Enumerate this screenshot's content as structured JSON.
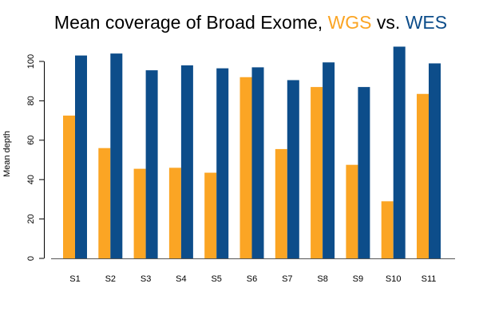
{
  "chart_data": {
    "type": "bar",
    "title": {
      "prefix": "Mean coverage of Broad Exome, ",
      "series1": "WGS",
      "middle": " vs. ",
      "series2": "WES"
    },
    "xlabel": "",
    "ylabel": "Mean depth",
    "ylim": [
      0,
      110
    ],
    "yticks": [
      0,
      20,
      40,
      60,
      80,
      100
    ],
    "categories": [
      "S1",
      "S2",
      "S3",
      "S4",
      "S5",
      "S6",
      "S7",
      "S8",
      "S9",
      "S10",
      "S11"
    ],
    "series": [
      {
        "name": "WGS",
        "color": "#FBA524",
        "values": [
          72.5,
          56,
          45.5,
          46,
          43.5,
          92,
          55.5,
          87,
          47.5,
          29,
          83.5
        ]
      },
      {
        "name": "WES",
        "color": "#0D4D8A",
        "values": [
          103,
          104,
          95.5,
          98,
          96.5,
          97,
          90.5,
          99.5,
          87,
          107.5,
          99
        ]
      }
    ],
    "grid": false
  }
}
